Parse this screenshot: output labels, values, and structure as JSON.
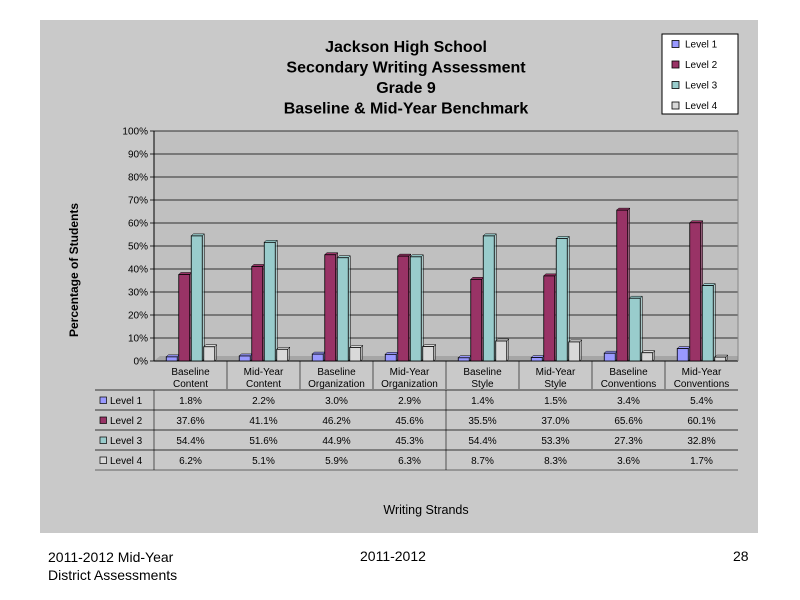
{
  "chart_data": {
    "type": "bar",
    "title_lines": [
      "Jackson High School",
      "Secondary Writing Assessment",
      "Grade 9",
      "Baseline & Mid-Year Benchmark"
    ],
    "xlabel": "Writing Strands",
    "ylabel": "Percentage of Students",
    "ylim": [
      0,
      100
    ],
    "y_ticks": [
      "0%",
      "10%",
      "20%",
      "30%",
      "40%",
      "50%",
      "60%",
      "70%",
      "80%",
      "90%",
      "100%"
    ],
    "grid": true,
    "legend_position": "top-right",
    "categories": [
      [
        "Baseline",
        "Content"
      ],
      [
        "Mid-Year",
        "Content"
      ],
      [
        "Baseline",
        "Organization"
      ],
      [
        "Mid-Year",
        "Organization"
      ],
      [
        "Baseline",
        "Style"
      ],
      [
        "Mid-Year",
        "Style"
      ],
      [
        "Baseline",
        "Conventions"
      ],
      [
        "Mid-Year",
        "Conventions"
      ]
    ],
    "series": [
      {
        "name": "Level 1",
        "color": "#9999ff",
        "values": [
          1.8,
          2.2,
          3.0,
          2.9,
          1.4,
          1.5,
          3.4,
          5.4
        ],
        "labels": [
          "1.8%",
          "2.2%",
          "3.0%",
          "2.9%",
          "1.4%",
          "1.5%",
          "3.4%",
          "5.4%"
        ]
      },
      {
        "name": "Level 2",
        "color": "#993366",
        "values": [
          37.6,
          41.1,
          46.2,
          45.6,
          35.5,
          37.0,
          65.6,
          60.1
        ],
        "labels": [
          "37.6%",
          "41.1%",
          "46.2%",
          "45.6%",
          "35.5%",
          "37.0%",
          "65.6%",
          "60.1%"
        ]
      },
      {
        "name": "Level 3",
        "color": "#99cccc",
        "values": [
          54.4,
          51.6,
          44.9,
          45.3,
          54.4,
          53.3,
          27.3,
          32.8
        ],
        "labels": [
          "54.4%",
          "51.6%",
          "44.9%",
          "45.3%",
          "54.4%",
          "53.3%",
          "27.3%",
          "32.8%"
        ]
      },
      {
        "name": "Level 4",
        "color": "#d9d9d9",
        "values": [
          6.2,
          5.1,
          5.9,
          6.3,
          8.7,
          8.3,
          3.6,
          1.7
        ],
        "labels": [
          "6.2%",
          "5.1%",
          "5.9%",
          "6.3%",
          "8.7%",
          "8.3%",
          "3.6%",
          "1.7%"
        ]
      }
    ]
  },
  "footer": {
    "left_line1": "2011-2012  Mid-Year",
    "left_line2": "District Assessments",
    "center": "2011-2012",
    "page_number": "28"
  }
}
